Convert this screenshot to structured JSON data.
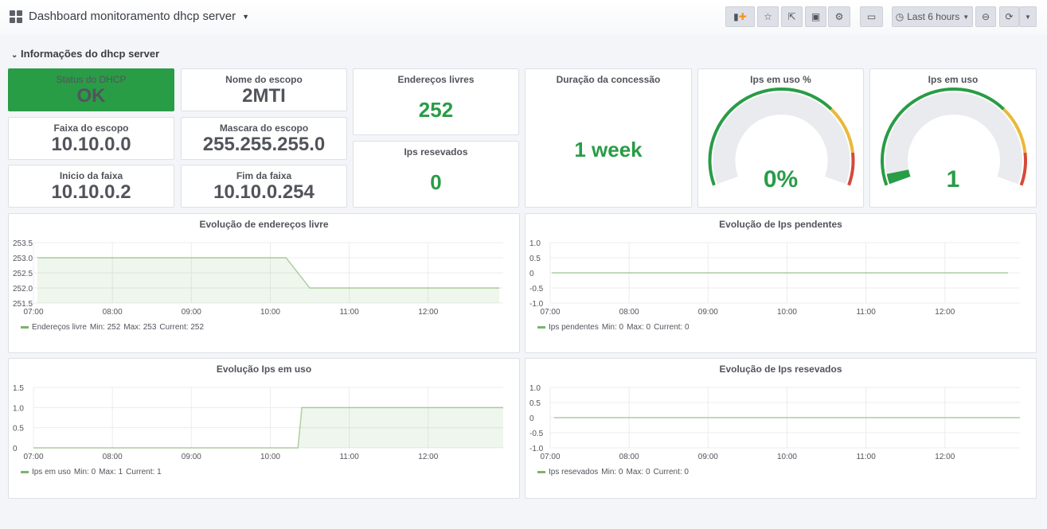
{
  "header": {
    "title": "Dashboard monitoramento dhcp server",
    "time_range": "Last 6 hours"
  },
  "row": {
    "title": "Informações do dhcp server"
  },
  "stats": {
    "status": {
      "title": "Status do DHCP",
      "value": "OK"
    },
    "nome": {
      "title": "Nome do escopo",
      "value": "2MTI"
    },
    "faixa": {
      "title": "Faixa do escopo",
      "value": "10.10.0.0"
    },
    "mascara": {
      "title": "Mascara do escopo",
      "value": "255.255.255.0"
    },
    "inicio": {
      "title": "Inicio da faixa",
      "value": "10.10.0.2"
    },
    "fim": {
      "title": "Fim da faixa",
      "value": "10.10.0.254"
    },
    "livres": {
      "title": "Endereços livres",
      "value": "252"
    },
    "reservados": {
      "title": "Ips resevados",
      "value": "0"
    },
    "duracao": {
      "title": "Duração da concessão",
      "value": "1 week"
    },
    "gauge_pct": {
      "title": "Ips em uso %",
      "value": "0%",
      "fraction": 0
    },
    "gauge_uso": {
      "title": "Ips em uso",
      "value": "1",
      "fraction": 0.01
    }
  },
  "colors": {
    "green": "#299c46",
    "yellow": "#eab839",
    "red": "#d44a3a",
    "line": "#7eb26d"
  },
  "chart_data": [
    {
      "type": "area",
      "title": "Evolução de endereços livre",
      "x_ticks": [
        "07:00",
        "08:00",
        "09:00",
        "10:00",
        "11:00",
        "12:00"
      ],
      "yticks": [
        "253.5",
        "253.0",
        "252.5",
        "252.0",
        "251.5"
      ],
      "ylim": [
        251.5,
        253.5
      ],
      "xlim_hours": [
        7,
        12.95
      ],
      "series": [
        {
          "name": "Endereços livre",
          "x": [
            7.05,
            10.2,
            10.5,
            12.9
          ],
          "y": [
            253,
            253,
            252,
            252
          ],
          "fill": true
        }
      ],
      "legend": {
        "name": "Endereços livre",
        "min": "Min: 252",
        "max": "Max: 253",
        "current": "Current: 252"
      }
    },
    {
      "type": "line",
      "title": "Evolução de Ips pendentes",
      "x_ticks": [
        "07:00",
        "08:00",
        "09:00",
        "10:00",
        "11:00",
        "12:00"
      ],
      "yticks": [
        "1.0",
        "0.5",
        "0",
        "-0.5",
        "-1.0"
      ],
      "ylim": [
        -1,
        1
      ],
      "xlim_hours": [
        7,
        12.95
      ],
      "series": [
        {
          "name": "Ips pendentes",
          "x": [
            7.02,
            12.8
          ],
          "y": [
            0,
            0
          ],
          "fill": false
        }
      ],
      "legend": {
        "name": "Ips pendentes",
        "min": "Min: 0",
        "max": "Max: 0",
        "current": "Current: 0"
      }
    },
    {
      "type": "area",
      "title": "Evolução Ips em uso",
      "x_ticks": [
        "07:00",
        "08:00",
        "09:00",
        "10:00",
        "11:00",
        "12:00"
      ],
      "yticks": [
        "1.5",
        "1.0",
        "0.5",
        "0"
      ],
      "ylim": [
        0,
        1.5
      ],
      "xlim_hours": [
        7,
        12.95
      ],
      "series": [
        {
          "name": "Ips em uso",
          "x": [
            7.0,
            10.35,
            10.4,
            12.95
          ],
          "y": [
            0,
            0,
            1,
            1
          ],
          "fill": true
        }
      ],
      "legend": {
        "name": "Ips em uso",
        "min": "Min: 0",
        "max": "Max: 1",
        "current": "Current: 1"
      }
    },
    {
      "type": "line",
      "title": "Evolução de Ips resevados",
      "x_ticks": [
        "07:00",
        "08:00",
        "09:00",
        "10:00",
        "11:00",
        "12:00"
      ],
      "yticks": [
        "1.0",
        "0.5",
        "0",
        "-0.5",
        "-1.0"
      ],
      "ylim": [
        -1,
        1
      ],
      "xlim_hours": [
        7,
        12.95
      ],
      "series": [
        {
          "name": "Ips resevados",
          "x": [
            7.05,
            12.95
          ],
          "y": [
            0,
            0
          ],
          "fill": false
        }
      ],
      "legend": {
        "name": "Ips resevados",
        "min": "Min: 0",
        "max": "Max: 0",
        "current": "Current: 0"
      }
    }
  ]
}
